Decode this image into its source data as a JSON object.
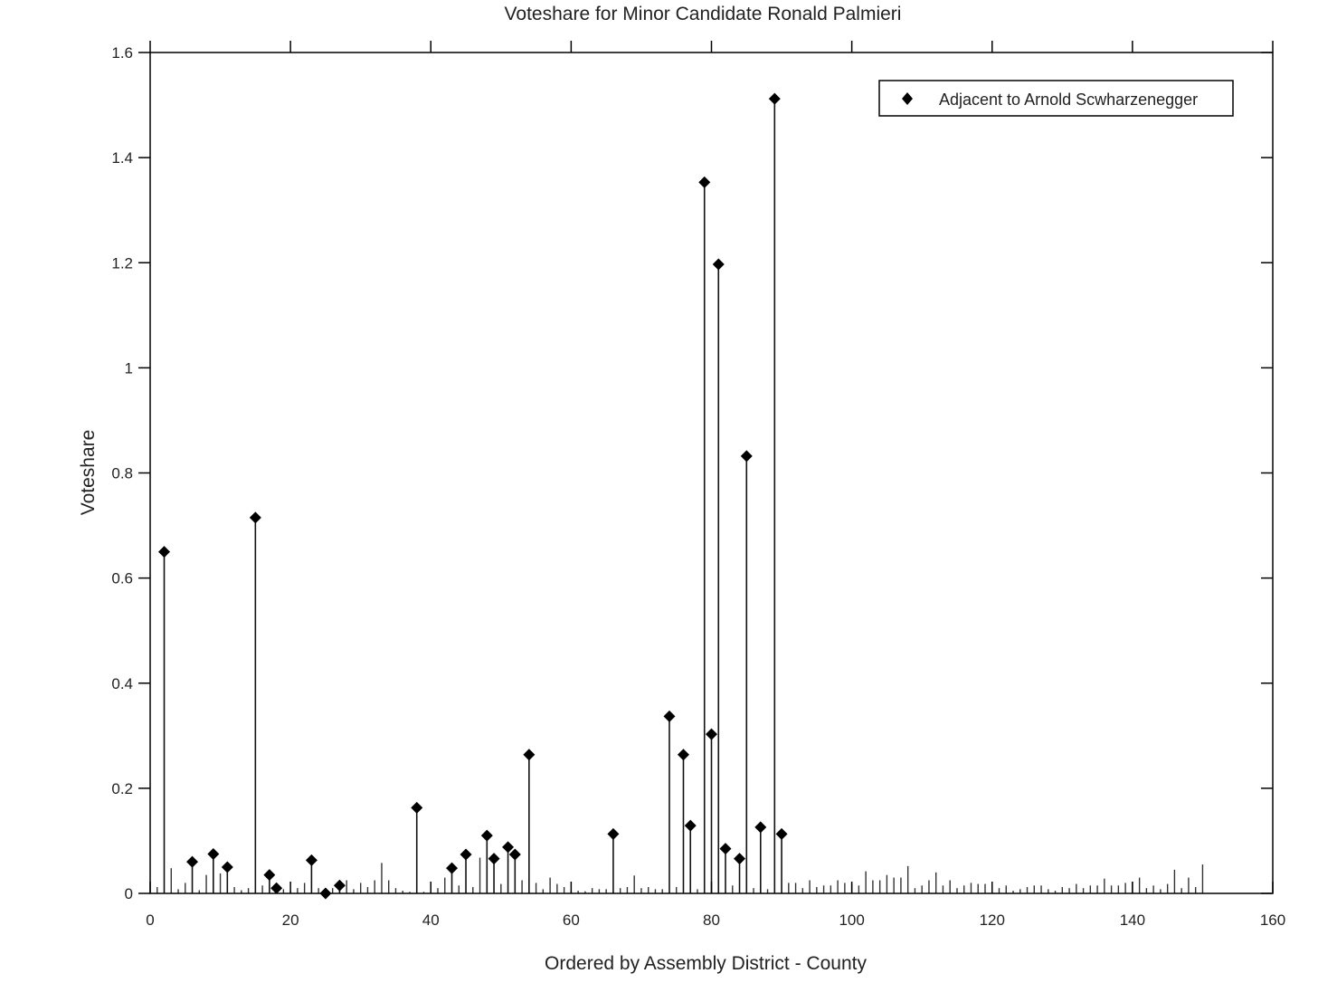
{
  "chart_data": {
    "type": "scatter",
    "title": "Voteshare for Minor Candidate Ronald Palmieri",
    "xlabel": "Ordered by Assembly District - County",
    "ylabel": "Voteshare",
    "xlim": [
      0,
      160
    ],
    "ylim": [
      0,
      1.6
    ],
    "xticks": [
      0,
      20,
      40,
      60,
      80,
      100,
      120,
      140,
      160
    ],
    "xtick_labels": [
      "0",
      "20",
      "40",
      "60",
      "80",
      "100",
      "120",
      "140",
      "160"
    ],
    "yticks": [
      0,
      0.2,
      0.4,
      0.6,
      0.8,
      1,
      1.2,
      1.4,
      1.6
    ],
    "ytick_labels": [
      "0",
      "0.2",
      "0.4",
      "0.6",
      "0.8",
      "1",
      "1.2",
      "1.4",
      "1.6"
    ],
    "grid": false,
    "legend_position": "top-right",
    "stem_color": "#000000",
    "marker_color": "#000000",
    "series": [
      {
        "name": "Adjacent to Arnold Scwharzenegger",
        "marker": "diamond",
        "points": [
          {
            "x": 2,
            "y": 0.65
          },
          {
            "x": 6,
            "y": 0.06
          },
          {
            "x": 9,
            "y": 0.075
          },
          {
            "x": 11,
            "y": 0.05
          },
          {
            "x": 15,
            "y": 0.715
          },
          {
            "x": 17,
            "y": 0.035
          },
          {
            "x": 18,
            "y": 0.01
          },
          {
            "x": 23,
            "y": 0.063
          },
          {
            "x": 25,
            "y": 0.0
          },
          {
            "x": 27,
            "y": 0.015
          },
          {
            "x": 38,
            "y": 0.163
          },
          {
            "x": 43,
            "y": 0.048
          },
          {
            "x": 45,
            "y": 0.074
          },
          {
            "x": 48,
            "y": 0.11
          },
          {
            "x": 49,
            "y": 0.066
          },
          {
            "x": 51,
            "y": 0.088
          },
          {
            "x": 52,
            "y": 0.074
          },
          {
            "x": 54,
            "y": 0.264
          },
          {
            "x": 66,
            "y": 0.113
          },
          {
            "x": 74,
            "y": 0.337
          },
          {
            "x": 76,
            "y": 0.264
          },
          {
            "x": 77,
            "y": 0.129
          },
          {
            "x": 79,
            "y": 1.353
          },
          {
            "x": 80,
            "y": 0.303
          },
          {
            "x": 81,
            "y": 1.197
          },
          {
            "x": 82,
            "y": 0.085
          },
          {
            "x": 84,
            "y": 0.066
          },
          {
            "x": 85,
            "y": 0.832
          },
          {
            "x": 87,
            "y": 0.126
          },
          {
            "x": 89,
            "y": 1.512
          },
          {
            "x": 90,
            "y": 0.113
          }
        ]
      },
      {
        "marker": "none",
        "points": [
          {
            "x": 1,
            "y": 0.012
          },
          {
            "x": 3,
            "y": 0.048
          },
          {
            "x": 4,
            "y": 0.008
          },
          {
            "x": 5,
            "y": 0.02
          },
          {
            "x": 7,
            "y": 0.006
          },
          {
            "x": 8,
            "y": 0.035
          },
          {
            "x": 10,
            "y": 0.038
          },
          {
            "x": 12,
            "y": 0.012
          },
          {
            "x": 13,
            "y": 0.006
          },
          {
            "x": 14,
            "y": 0.01
          },
          {
            "x": 16,
            "y": 0.015
          },
          {
            "x": 19,
            "y": 0.008
          },
          {
            "x": 20,
            "y": 0.005
          },
          {
            "x": 21,
            "y": 0.01
          },
          {
            "x": 22,
            "y": 0.02
          },
          {
            "x": 24,
            "y": 0.01
          },
          {
            "x": 26,
            "y": 0.01
          },
          {
            "x": 28,
            "y": 0.025
          },
          {
            "x": 29,
            "y": 0.008
          },
          {
            "x": 30,
            "y": 0.02
          },
          {
            "x": 31,
            "y": 0.012
          },
          {
            "x": 32,
            "y": 0.025
          },
          {
            "x": 33,
            "y": 0.058
          },
          {
            "x": 34,
            "y": 0.025
          },
          {
            "x": 35,
            "y": 0.01
          },
          {
            "x": 36,
            "y": 0.005
          },
          {
            "x": 37,
            "y": 0.003
          },
          {
            "x": 39,
            "y": 0.003
          },
          {
            "x": 40,
            "y": 0.015
          },
          {
            "x": 41,
            "y": 0.01
          },
          {
            "x": 42,
            "y": 0.03
          },
          {
            "x": 44,
            "y": 0.015
          },
          {
            "x": 46,
            "y": 0.012
          },
          {
            "x": 47,
            "y": 0.068
          },
          {
            "x": 50,
            "y": 0.018
          },
          {
            "x": 53,
            "y": 0.025
          },
          {
            "x": 55,
            "y": 0.02
          },
          {
            "x": 56,
            "y": 0.008
          },
          {
            "x": 57,
            "y": 0.03
          },
          {
            "x": 58,
            "y": 0.018
          },
          {
            "x": 59,
            "y": 0.012
          },
          {
            "x": 60,
            "y": 0.006
          },
          {
            "x": 61,
            "y": 0.005
          },
          {
            "x": 62,
            "y": 0.004
          },
          {
            "x": 63,
            "y": 0.01
          },
          {
            "x": 64,
            "y": 0.008
          },
          {
            "x": 65,
            "y": 0.008
          },
          {
            "x": 67,
            "y": 0.01
          },
          {
            "x": 68,
            "y": 0.012
          },
          {
            "x": 69,
            "y": 0.034
          },
          {
            "x": 70,
            "y": 0.01
          },
          {
            "x": 71,
            "y": 0.012
          },
          {
            "x": 72,
            "y": 0.008
          },
          {
            "x": 73,
            "y": 0.008
          },
          {
            "x": 75,
            "y": 0.012
          },
          {
            "x": 78,
            "y": 0.008
          },
          {
            "x": 83,
            "y": 0.015
          },
          {
            "x": 86,
            "y": 0.01
          },
          {
            "x": 88,
            "y": 0.008
          },
          {
            "x": 91,
            "y": 0.02
          },
          {
            "x": 92,
            "y": 0.02
          },
          {
            "x": 93,
            "y": 0.01
          },
          {
            "x": 94,
            "y": 0.025
          },
          {
            "x": 95,
            "y": 0.012
          },
          {
            "x": 96,
            "y": 0.015
          },
          {
            "x": 97,
            "y": 0.015
          },
          {
            "x": 98,
            "y": 0.025
          },
          {
            "x": 99,
            "y": 0.02
          },
          {
            "x": 100,
            "y": 0.02
          },
          {
            "x": 101,
            "y": 0.015
          },
          {
            "x": 102,
            "y": 0.042
          },
          {
            "x": 103,
            "y": 0.025
          },
          {
            "x": 104,
            "y": 0.025
          },
          {
            "x": 105,
            "y": 0.035
          },
          {
            "x": 106,
            "y": 0.03
          },
          {
            "x": 107,
            "y": 0.03
          },
          {
            "x": 108,
            "y": 0.052
          },
          {
            "x": 109,
            "y": 0.01
          },
          {
            "x": 110,
            "y": 0.015
          },
          {
            "x": 111,
            "y": 0.025
          },
          {
            "x": 112,
            "y": 0.04
          },
          {
            "x": 113,
            "y": 0.015
          },
          {
            "x": 114,
            "y": 0.025
          },
          {
            "x": 115,
            "y": 0.01
          },
          {
            "x": 116,
            "y": 0.015
          },
          {
            "x": 117,
            "y": 0.02
          },
          {
            "x": 118,
            "y": 0.018
          },
          {
            "x": 119,
            "y": 0.018
          },
          {
            "x": 120,
            "y": 0.008
          },
          {
            "x": 121,
            "y": 0.01
          },
          {
            "x": 122,
            "y": 0.015
          },
          {
            "x": 123,
            "y": 0.005
          },
          {
            "x": 124,
            "y": 0.008
          },
          {
            "x": 125,
            "y": 0.012
          },
          {
            "x": 126,
            "y": 0.015
          },
          {
            "x": 127,
            "y": 0.015
          },
          {
            "x": 128,
            "y": 0.008
          },
          {
            "x": 129,
            "y": 0.005
          },
          {
            "x": 130,
            "y": 0.012
          },
          {
            "x": 131,
            "y": 0.01
          },
          {
            "x": 132,
            "y": 0.018
          },
          {
            "x": 133,
            "y": 0.01
          },
          {
            "x": 134,
            "y": 0.015
          },
          {
            "x": 135,
            "y": 0.015
          },
          {
            "x": 136,
            "y": 0.028
          },
          {
            "x": 137,
            "y": 0.015
          },
          {
            "x": 138,
            "y": 0.015
          },
          {
            "x": 139,
            "y": 0.02
          },
          {
            "x": 140,
            "y": 0.022
          },
          {
            "x": 141,
            "y": 0.03
          },
          {
            "x": 142,
            "y": 0.01
          },
          {
            "x": 143,
            "y": 0.015
          },
          {
            "x": 144,
            "y": 0.008
          },
          {
            "x": 145,
            "y": 0.018
          },
          {
            "x": 146,
            "y": 0.045
          },
          {
            "x": 147,
            "y": 0.01
          },
          {
            "x": 148,
            "y": 0.03
          },
          {
            "x": 149,
            "y": 0.012
          },
          {
            "x": 150,
            "y": 0.055
          }
        ]
      }
    ]
  }
}
